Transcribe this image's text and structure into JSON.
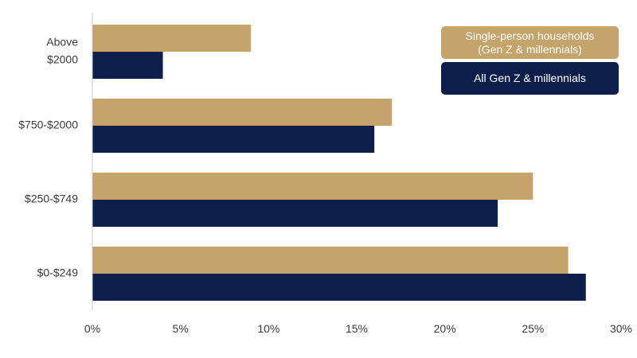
{
  "chart_data": {
    "type": "bar",
    "orientation": "horizontal",
    "categories": [
      "Above $2000",
      "$750-$2000",
      "$250-$749",
      "$0-$249"
    ],
    "category_label_lines": [
      [
        "Above",
        "$2000"
      ],
      [
        "$750-$2000"
      ],
      [
        "$250-$749"
      ],
      [
        "$0-$249"
      ]
    ],
    "series": [
      {
        "name": "Single-person households (Gen Z & millennials)",
        "name_lines": [
          "Single-person households",
          "(Gen Z & millennials)"
        ],
        "values": [
          9,
          17,
          25,
          27
        ],
        "color": "#c4a46a"
      },
      {
        "name": "All Gen Z & millennials",
        "name_lines": [
          "All Gen Z & millennials"
        ],
        "values": [
          4,
          16,
          23,
          28
        ],
        "color": "#0c1f4a"
      }
    ],
    "xlim": [
      0,
      30
    ],
    "xticks": [
      0,
      5,
      10,
      15,
      20,
      25,
      30
    ],
    "tick_format": "percent",
    "grid": false,
    "legend_position": "top-right"
  }
}
